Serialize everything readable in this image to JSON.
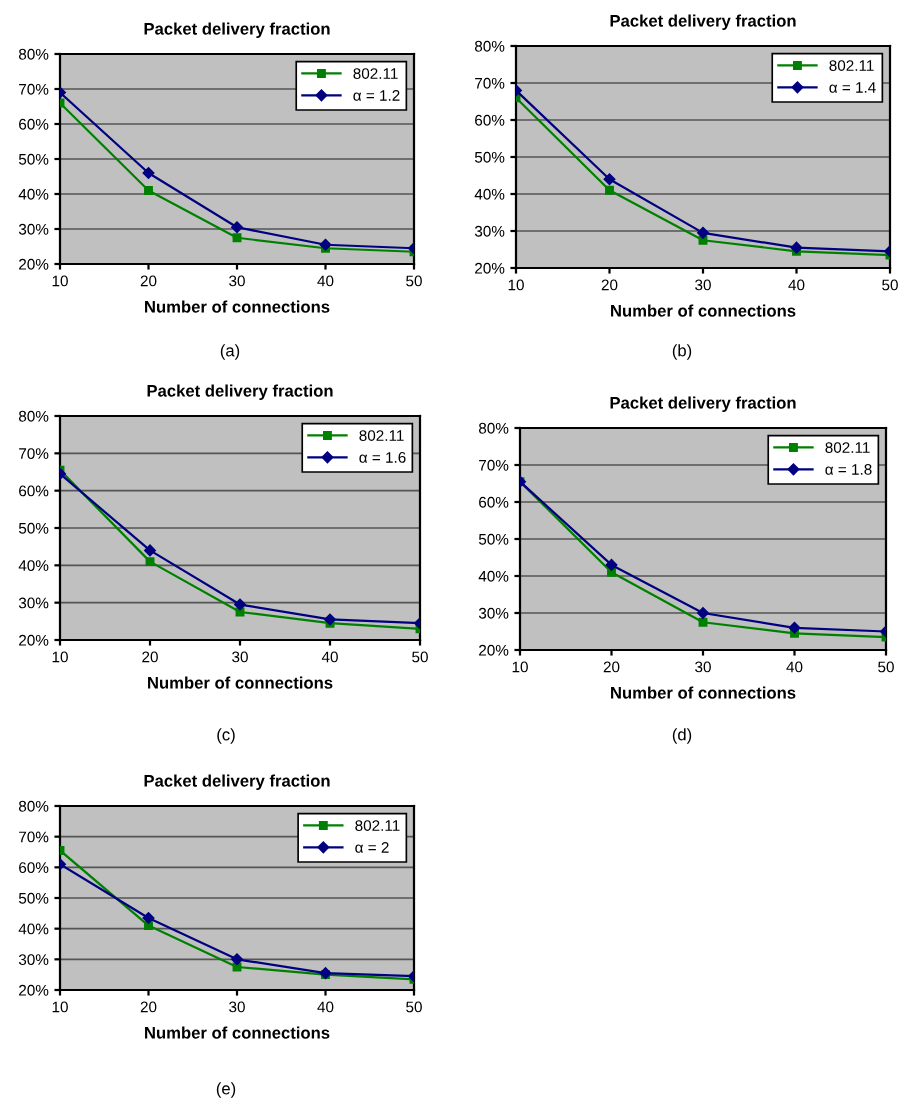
{
  "chart_data": [
    {
      "type": "line",
      "title": "Packet delivery fraction",
      "xlabel": "Number of connections",
      "x": [
        10,
        20,
        30,
        40,
        50
      ],
      "xlim": [
        10,
        50
      ],
      "xticks": [
        10,
        20,
        30,
        40,
        50
      ],
      "ylim": [
        20,
        80
      ],
      "yticks": [
        {
          "value": 20,
          "label": "20%"
        },
        {
          "value": 30,
          "label": "30%"
        },
        {
          "value": 40,
          "label": "40%"
        },
        {
          "value": 50,
          "label": "50%"
        },
        {
          "value": 60,
          "label": "60%"
        },
        {
          "value": 70,
          "label": "70%"
        },
        {
          "value": 80,
          "label": "80%"
        }
      ],
      "grid": "y",
      "legend": "top right",
      "annotations": [
        "(a)"
      ],
      "series": [
        {
          "name": "802.11",
          "color": "#008000",
          "marker": "square",
          "values": [
            66,
            41,
            27.5,
            24.5,
            23.5
          ]
        },
        {
          "name": "α = 1.2",
          "color": "#000080",
          "marker": "diamond",
          "values": [
            69,
            46,
            30.5,
            25.5,
            24.5
          ]
        }
      ]
    },
    {
      "type": "line",
      "title": "Packet delivery fraction",
      "xlabel": "Number of connections",
      "x": [
        10,
        20,
        30,
        40,
        50
      ],
      "xlim": [
        10,
        50
      ],
      "xticks": [
        10,
        20,
        30,
        40,
        50
      ],
      "ylim": [
        20,
        80
      ],
      "yticks": [
        {
          "value": 20,
          "label": "20%"
        },
        {
          "value": 30,
          "label": "30%"
        },
        {
          "value": 40,
          "label": "40%"
        },
        {
          "value": 50,
          "label": "50%"
        },
        {
          "value": 60,
          "label": "60%"
        },
        {
          "value": 70,
          "label": "70%"
        },
        {
          "value": 80,
          "label": "80%"
        }
      ],
      "grid": "y",
      "legend": "top right",
      "annotations": [
        "(b)"
      ],
      "series": [
        {
          "name": "802.11",
          "color": "#008000",
          "marker": "square",
          "values": [
            66,
            41,
            27.5,
            24.5,
            23.5
          ]
        },
        {
          "name": "α = 1.4",
          "color": "#000080",
          "marker": "diamond",
          "values": [
            68,
            44,
            29.5,
            25.5,
            24.5
          ]
        }
      ]
    },
    {
      "type": "line",
      "title": "Packet delivery fraction",
      "xlabel": "Number of connections",
      "x": [
        10,
        20,
        30,
        40,
        50
      ],
      "xlim": [
        10,
        50
      ],
      "xticks": [
        10,
        20,
        30,
        40,
        50
      ],
      "ylim": [
        20,
        80
      ],
      "yticks": [
        {
          "value": 20,
          "label": "20%"
        },
        {
          "value": 30,
          "label": "30%"
        },
        {
          "value": 40,
          "label": "40%"
        },
        {
          "value": 50,
          "label": "50%"
        },
        {
          "value": 60,
          "label": "60%"
        },
        {
          "value": 70,
          "label": "70%"
        },
        {
          "value": 80,
          "label": "80%"
        }
      ],
      "grid": "y",
      "legend": "top right",
      "annotations": [
        "(c)"
      ],
      "series": [
        {
          "name": "802.11",
          "color": "#008000",
          "marker": "square",
          "values": [
            65.5,
            41,
            27.5,
            24.5,
            23
          ]
        },
        {
          "name": "α = 1.6",
          "color": "#000080",
          "marker": "diamond",
          "values": [
            64.5,
            44,
            29.5,
            25.5,
            24.5
          ]
        }
      ]
    },
    {
      "type": "line",
      "title": "Packet delivery fraction",
      "xlabel": "Number of connections",
      "x": [
        10,
        20,
        30,
        40,
        50
      ],
      "xlim": [
        10,
        50
      ],
      "xticks": [
        10,
        20,
        30,
        40,
        50
      ],
      "ylim": [
        20,
        80
      ],
      "yticks": [
        {
          "value": 20,
          "label": "20%"
        },
        {
          "value": 30,
          "label": "30%"
        },
        {
          "value": 40,
          "label": "40%"
        },
        {
          "value": 50,
          "label": "50%"
        },
        {
          "value": 60,
          "label": "60%"
        },
        {
          "value": 70,
          "label": "70%"
        },
        {
          "value": 80,
          "label": "80%"
        }
      ],
      "grid": "y",
      "legend": "top right",
      "annotations": [
        "(d)"
      ],
      "series": [
        {
          "name": "802.11",
          "color": "#008000",
          "marker": "square",
          "values": [
            65.5,
            41,
            27.5,
            24.5,
            23.5
          ]
        },
        {
          "name": "α = 1.8",
          "color": "#000080",
          "marker": "diamond",
          "values": [
            65.5,
            43,
            30,
            26,
            25
          ]
        }
      ]
    },
    {
      "type": "line",
      "title": "Packet delivery fraction",
      "xlabel": "Number of connections",
      "x": [
        10,
        20,
        30,
        40,
        50
      ],
      "xlim": [
        10,
        50
      ],
      "xticks": [
        10,
        20,
        30,
        40,
        50
      ],
      "ylim": [
        20,
        80
      ],
      "yticks": [
        {
          "value": 20,
          "label": "20%"
        },
        {
          "value": 30,
          "label": "30%"
        },
        {
          "value": 40,
          "label": "40%"
        },
        {
          "value": 50,
          "label": "50%"
        },
        {
          "value": 60,
          "label": "60%"
        },
        {
          "value": 70,
          "label": "70%"
        },
        {
          "value": 80,
          "label": "80%"
        }
      ],
      "grid": "y",
      "legend": "top right",
      "annotations": [
        "(e)"
      ],
      "series": [
        {
          "name": "802.11",
          "color": "#008000",
          "marker": "square",
          "values": [
            65.5,
            41,
            27.5,
            25,
            23.5
          ]
        },
        {
          "name": "α = 2",
          "color": "#000080",
          "marker": "diamond",
          "values": [
            61,
            43.5,
            30,
            25.5,
            24.5
          ]
        }
      ]
    }
  ]
}
